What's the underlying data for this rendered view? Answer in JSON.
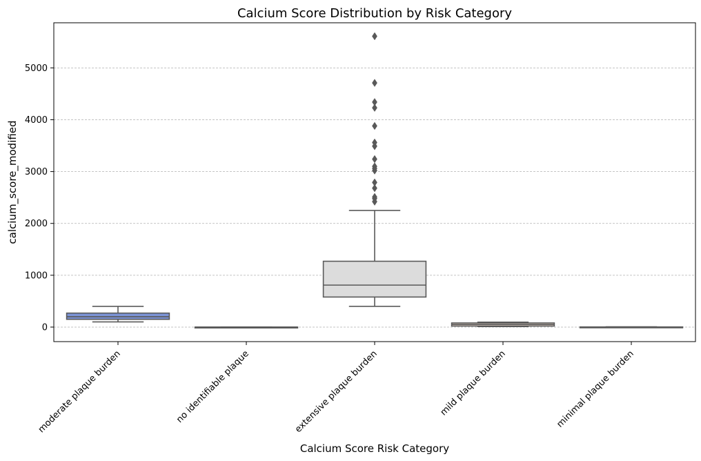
{
  "chart_data": {
    "type": "box",
    "title": "Calcium Score Distribution by Risk Category",
    "xlabel": "Calcium Score Risk Category",
    "ylabel": "calcium_score_modified",
    "ylim": [
      -280,
      5870
    ],
    "yticks": [
      0,
      1000,
      2000,
      3000,
      4000,
      5000
    ],
    "grid": "y-dashed",
    "categories": [
      "moderate plaque burden",
      "no identifiable plaque",
      "extensive plaque burden",
      "mild plaque burden",
      "minimal plaque burden"
    ],
    "boxes": [
      {
        "category": "moderate plaque burden",
        "whisker_low": 100,
        "q1": 150,
        "median": 200,
        "q3": 270,
        "whisker_high": 400,
        "outliers": [],
        "color": "#7b93d6"
      },
      {
        "category": "no identifiable plaque",
        "whisker_low": 0,
        "q1": 0,
        "median": 0,
        "q3": 0,
        "whisker_high": 0,
        "outliers": [],
        "color": "#e8e0d2"
      },
      {
        "category": "extensive plaque burden",
        "whisker_low": 400,
        "q1": 580,
        "median": 810,
        "q3": 1270,
        "whisker_high": 2250,
        "outliers": [
          2420,
          2480,
          2510,
          2680,
          2790,
          3020,
          3060,
          3100,
          3240,
          3490,
          3560,
          3880,
          4230,
          4340,
          4710,
          5610
        ],
        "color": "#dcdcdc"
      },
      {
        "category": "mild plaque burden",
        "whisker_low": 10,
        "q1": 20,
        "median": 50,
        "q3": 80,
        "whisker_high": 95,
        "outliers": [],
        "color": "#e2d0c4"
      },
      {
        "category": "minimal plaque burden",
        "whisker_low": 1,
        "q1": 1,
        "median": 2,
        "q3": 3,
        "whisker_high": 5,
        "outliers": [],
        "color": "#d8d8d8"
      }
    ]
  }
}
